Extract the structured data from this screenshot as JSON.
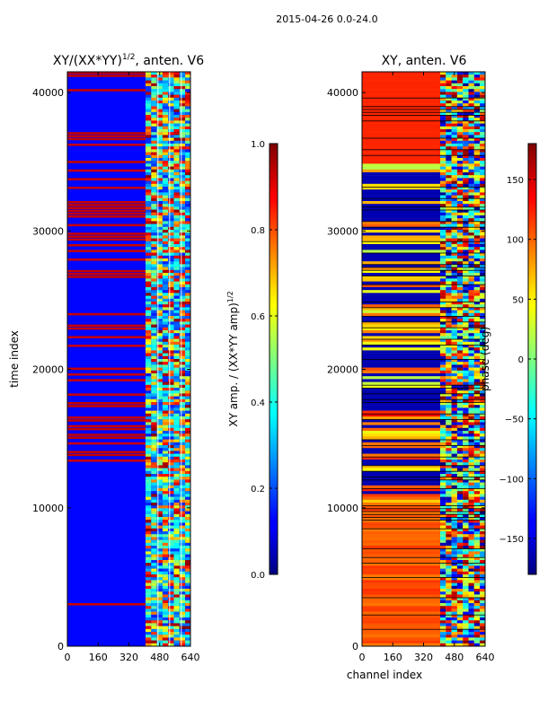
{
  "figure_title": "2015-04-26 0.0-24.0",
  "chart_data": [
    {
      "type": "heatmap",
      "title_main": "XY/(XX*YY)",
      "title_exp": "1/2",
      "title_tail": ", anten. V6",
      "ylabel": "time index",
      "xlabel": "",
      "xlim": [
        0,
        640
      ],
      "ylim": [
        0,
        41500
      ],
      "xticks": [
        0,
        160,
        320,
        480,
        640
      ],
      "yticks": [
        0,
        10000,
        20000,
        30000,
        40000
      ],
      "colormap": "jet",
      "colorbar": {
        "label_main": "XY amp. / (XX*YY amp)",
        "label_exp": "1/2",
        "range": [
          0.0,
          1.0
        ],
        "ticks": [
          "0.0",
          "0.2",
          "0.4",
          "0.6",
          "0.8",
          "1.0"
        ]
      }
    },
    {
      "type": "heatmap",
      "title": "XY, anten. V6",
      "ylabel": "",
      "xlabel": "channel index",
      "xlim": [
        0,
        640
      ],
      "ylim": [
        0,
        41500
      ],
      "xticks": [
        0,
        160,
        320,
        480,
        640
      ],
      "yticks": [
        0,
        10000,
        20000,
        30000,
        40000
      ],
      "colormap": "jet",
      "colorbar": {
        "label": "phase (deg)",
        "range": [
          -180,
          180
        ],
        "ticks": [
          "−150",
          "−100",
          "−50",
          "0",
          "50",
          "100",
          "150"
        ]
      }
    }
  ]
}
